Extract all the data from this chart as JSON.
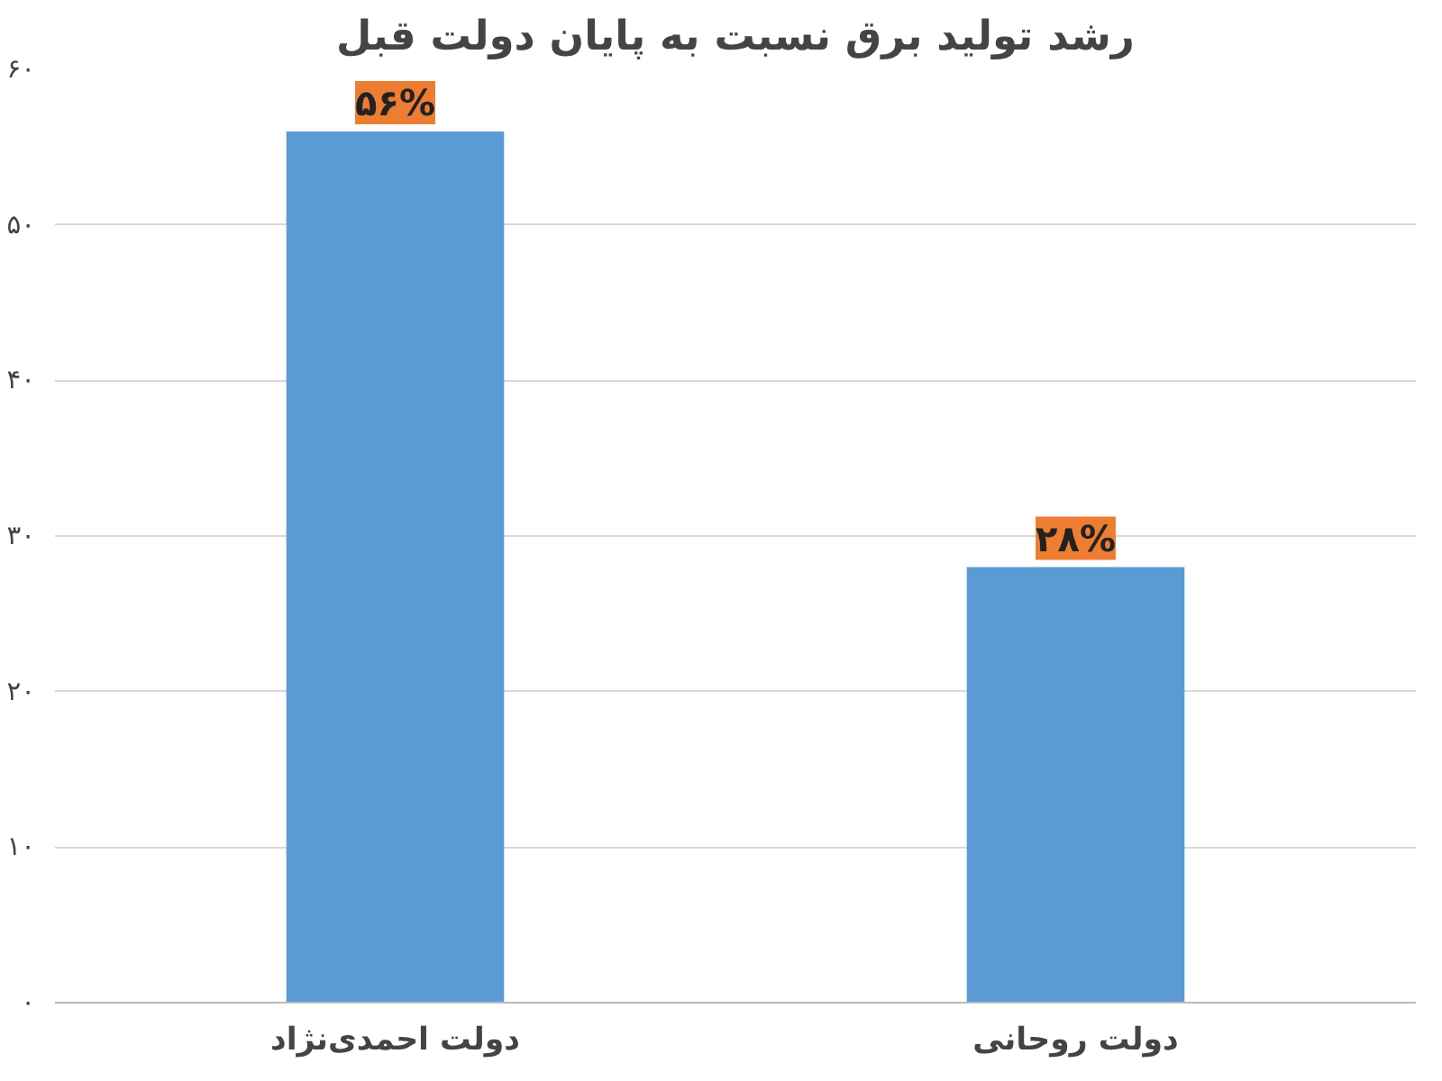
{
  "chart_data": {
    "type": "bar",
    "title": "رشد تولید برق نسبت به پایان دولت قبل",
    "categories": [
      "دولت احمدی‌نژاد",
      "دولت روحانی"
    ],
    "values": [
      56,
      28
    ],
    "color": "#5b9bd5",
    "value_labels": [
      "۵۶%",
      "۲۸%"
    ],
    "ylim": [
      0,
      60
    ],
    "yticks": [
      {
        "value": 0,
        "label": "۰"
      },
      {
        "value": 10,
        "label": "۱۰"
      },
      {
        "value": 20,
        "label": "۲۰"
      },
      {
        "value": 30,
        "label": "۳۰"
      },
      {
        "value": 40,
        "label": "۴۰"
      },
      {
        "value": 50,
        "label": "۵۰"
      },
      {
        "value": 60,
        "label": "۶۰"
      }
    ],
    "grid": "y"
  }
}
